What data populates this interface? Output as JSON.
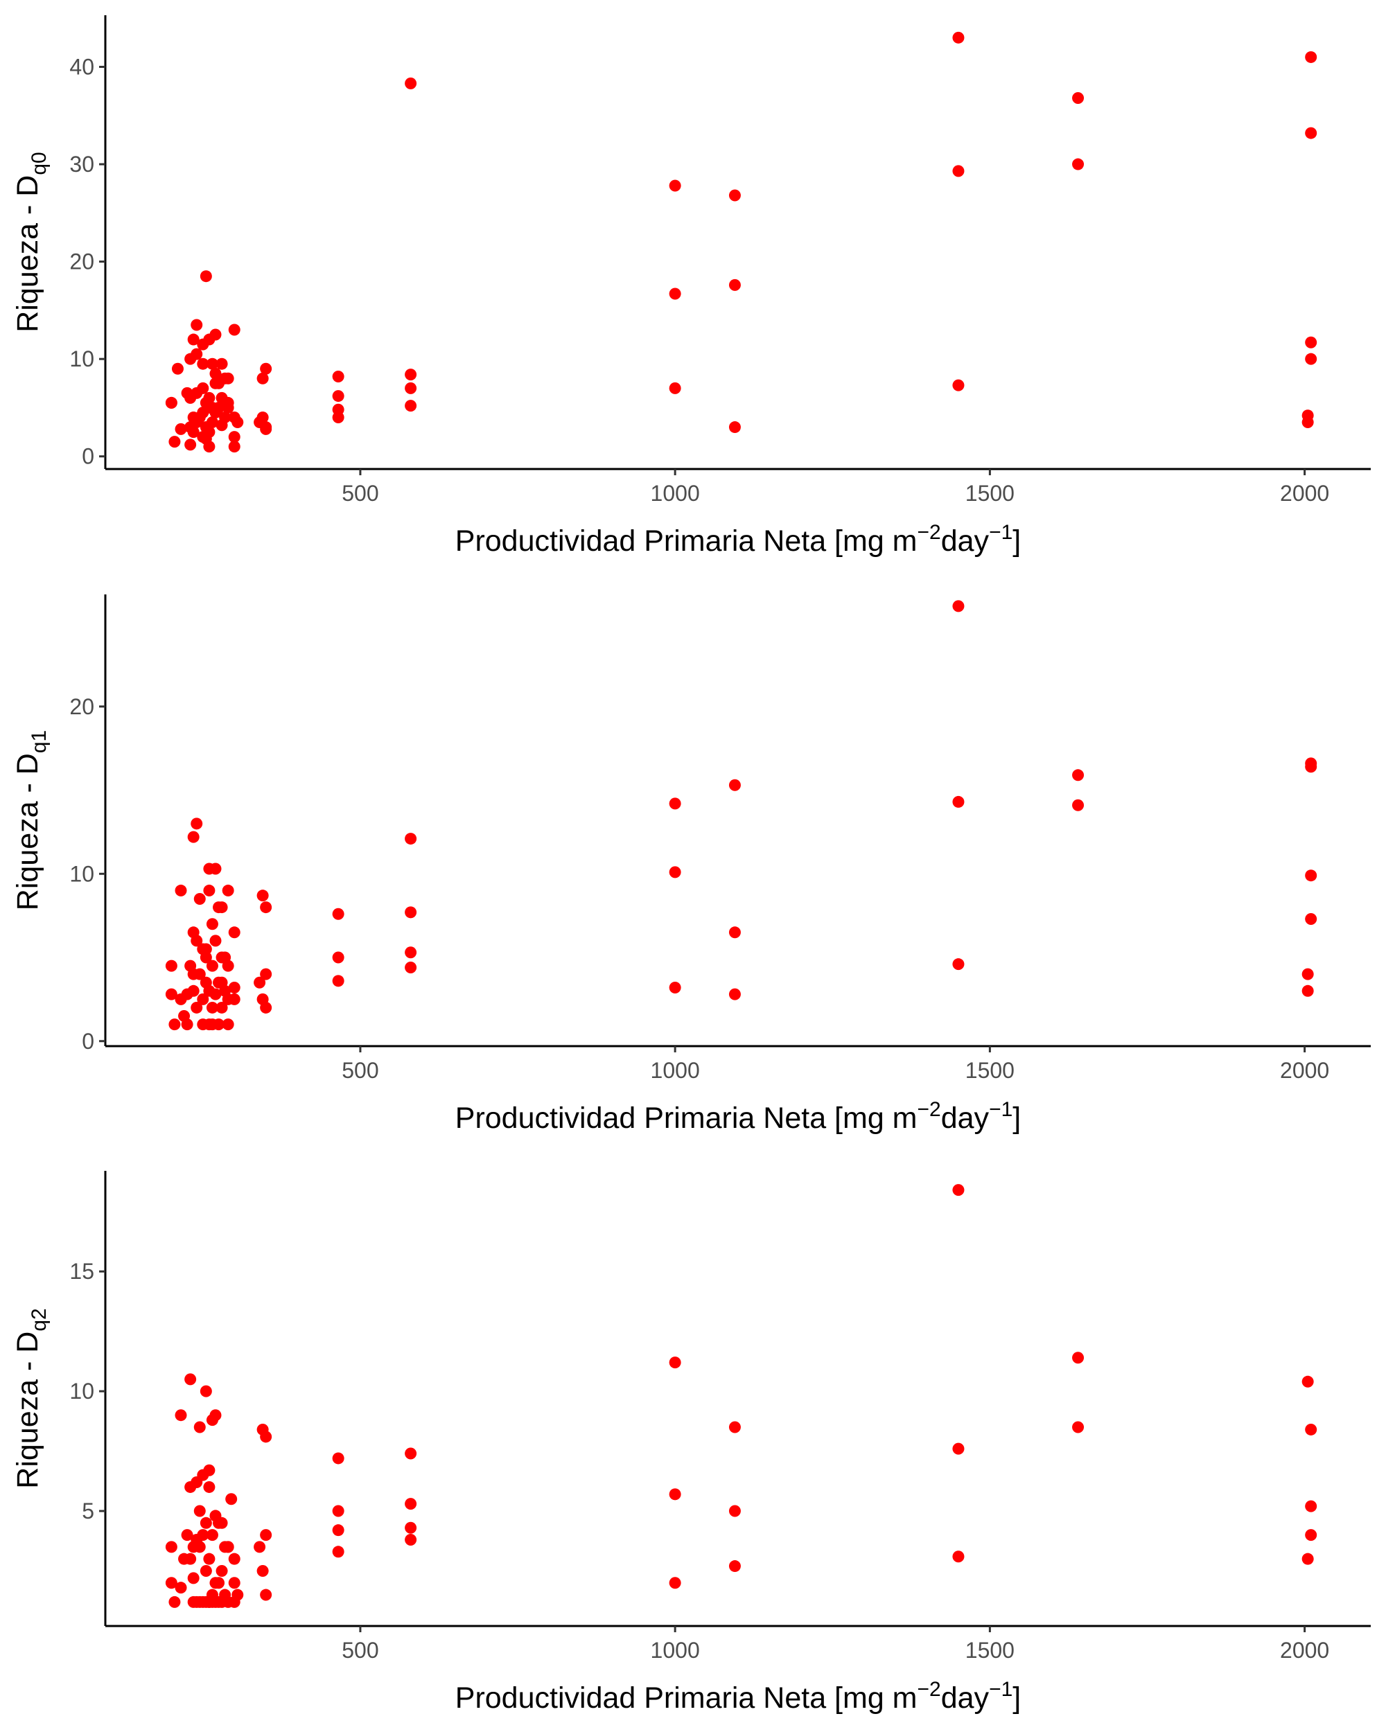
{
  "chart_data": [
    {
      "type": "scatter",
      "xlabel": "Productividad Primaria Neta [mg m",
      "xlabel_sup1": "−2",
      "xlabel_mid": "day",
      "xlabel_sup2": "−1",
      "xlabel_end": "]",
      "ylabel_main": "Riqueza - D",
      "ylabel_sub": "q0",
      "xlim": [
        95,
        2105
      ],
      "ylim": [
        -1.3,
        45.3
      ],
      "xticks": [
        500,
        1000,
        1500,
        2000
      ],
      "yticks": [
        0,
        10,
        20,
        30,
        40
      ],
      "grid": false,
      "point_color": "#ff0000",
      "series": [
        {
          "x": [
            200,
            205,
            215,
            230,
            230,
            235,
            240,
            245,
            250,
            255,
            260,
            265,
            270,
            275,
            280,
            285,
            290,
            300,
            305,
            230,
            240,
            250,
            255,
            260,
            265,
            270,
            280,
            285,
            290,
            300,
            200,
            210,
            225,
            240,
            250,
            260,
            270,
            280,
            300,
            235,
            250,
            265,
            275,
            290,
            240,
            255,
            270,
            250,
            260,
            300,
            235,
            260,
            230,
            255,
            340,
            345,
            350,
            345,
            350,
            350,
            465,
            465,
            465,
            465,
            580,
            580,
            580,
            580,
            1000,
            1000,
            1000,
            1095,
            1095,
            1095,
            1450,
            1450,
            1450,
            1640,
            1640,
            2005,
            2005,
            2010,
            2010,
            2010,
            2010
          ],
          "y": [
            5.5,
            1.5,
            2.8,
            3.0,
            1.2,
            2.5,
            3.5,
            4.0,
            4.5,
            3.0,
            5.0,
            3.5,
            4.5,
            5.0,
            3.2,
            4.0,
            5.5,
            4.0,
            3.5,
            6.0,
            6.5,
            7.0,
            5.5,
            6.0,
            5.0,
            7.5,
            6.0,
            8.0,
            5.0,
            2.0,
            5.5,
            9.0,
            6.5,
            10.5,
            9.5,
            12.0,
            8.5,
            9.5,
            13.0,
            12.0,
            11.5,
            9.5,
            7.5,
            8.0,
            13.5,
            18.5,
            12.5,
            2.0,
            1.0,
            1.0,
            4.0,
            2.5,
            10.0,
            1.8,
            3.5,
            4.0,
            3.0,
            8.0,
            9.0,
            2.8,
            4.0,
            4.8,
            6.2,
            8.2,
            5.2,
            7.0,
            8.4,
            38.3,
            7.0,
            16.7,
            27.8,
            3.0,
            17.6,
            26.8,
            7.3,
            29.3,
            43.0,
            30.0,
            36.8,
            3.5,
            4.2,
            10.0,
            11.7,
            33.2,
            41.0
          ]
        }
      ]
    },
    {
      "type": "scatter",
      "xlabel": "Productividad Primaria Neta [mg m",
      "xlabel_sup1": "−2",
      "xlabel_mid": "day",
      "xlabel_sup2": "−1",
      "xlabel_end": "]",
      "ylabel_main": "Riqueza - D",
      "ylabel_sub": "q1",
      "xlim": [
        95,
        2105
      ],
      "ylim": [
        -0.3,
        26.7
      ],
      "xticks": [
        500,
        1000,
        1500,
        2000
      ],
      "yticks": [
        0,
        10,
        20
      ],
      "grid": false,
      "point_color": "#ff0000",
      "series": [
        {
          "x": [
            200,
            200,
            205,
            215,
            225,
            235,
            240,
            250,
            255,
            260,
            265,
            270,
            275,
            280,
            285,
            290,
            300,
            230,
            245,
            255,
            265,
            280,
            290,
            300,
            220,
            240,
            255,
            270,
            285,
            235,
            250,
            265,
            280,
            300,
            245,
            260,
            270,
            275,
            290,
            235,
            260,
            240,
            215,
            250,
            265,
            260,
            275,
            290,
            225,
            235,
            280,
            340,
            345,
            350,
            350,
            345,
            350,
            465,
            465,
            465,
            580,
            580,
            580,
            580,
            1000,
            1000,
            1000,
            1095,
            1095,
            1095,
            1450,
            1450,
            1450,
            1640,
            1640,
            2005,
            2005,
            2010,
            2010,
            2010,
            2010
          ],
          "y": [
            4.5,
            2.8,
            1.0,
            2.5,
            2.8,
            3.0,
            2.0,
            2.5,
            3.5,
            3.0,
            2.0,
            2.8,
            3.5,
            2.0,
            3.0,
            2.5,
            3.2,
            4.5,
            4.0,
            5.0,
            4.5,
            3.5,
            4.5,
            2.5,
            1.5,
            6.0,
            5.5,
            6.0,
            5.0,
            6.5,
            5.5,
            7.0,
            8.0,
            6.5,
            8.5,
            9.0,
            10.3,
            8.0,
            9.0,
            12.2,
            10.3,
            13.0,
            9.0,
            1.0,
            1.0,
            1.0,
            1.0,
            1.0,
            1.0,
            4.0,
            5.0,
            3.5,
            2.5,
            2.0,
            4.0,
            8.7,
            8.0,
            3.6,
            5.0,
            7.6,
            4.4,
            5.3,
            7.7,
            12.1,
            3.2,
            10.1,
            14.2,
            2.8,
            6.5,
            15.3,
            4.6,
            14.3,
            26.0,
            14.1,
            15.9,
            3.0,
            4.0,
            7.3,
            9.9,
            16.4,
            16.6
          ]
        }
      ]
    },
    {
      "type": "scatter",
      "xlabel": "Productividad Primaria Neta [mg m",
      "xlabel_sup1": "−2",
      "xlabel_mid": "day",
      "xlabel_sup2": "−1",
      "xlabel_end": "]",
      "ylabel_main": "Riqueza - D",
      "ylabel_sub": "q2",
      "xlim": [
        95,
        2105
      ],
      "ylim": [
        0.2,
        19.2
      ],
      "xticks": [
        500,
        1000,
        1500,
        2000
      ],
      "yticks": [
        5,
        10,
        15
      ],
      "grid": false,
      "point_color": "#ff0000",
      "series": [
        {
          "x": [
            200,
            200,
            205,
            215,
            220,
            230,
            235,
            240,
            245,
            250,
            255,
            260,
            265,
            270,
            275,
            280,
            285,
            290,
            300,
            305,
            225,
            235,
            245,
            255,
            265,
            275,
            285,
            295,
            230,
            240,
            250,
            260,
            270,
            280,
            290,
            300,
            230,
            245,
            255,
            260,
            265,
            270,
            245,
            260,
            275,
            215,
            235,
            255,
            270,
            240,
            250,
            260,
            265,
            280,
            290,
            300,
            340,
            345,
            350,
            350,
            345,
            350,
            465,
            465,
            465,
            465,
            580,
            580,
            580,
            580,
            1000,
            1000,
            1000,
            1095,
            1095,
            1095,
            1450,
            1450,
            1450,
            1640,
            1640,
            2005,
            2005,
            2010,
            2010,
            2010
          ],
          "y": [
            3.5,
            2.0,
            1.2,
            1.8,
            3.0,
            3.0,
            2.2,
            3.8,
            3.5,
            4.0,
            2.5,
            3.0,
            1.5,
            2.0,
            2.0,
            2.5,
            1.5,
            3.5,
            2.0,
            1.5,
            4.0,
            3.5,
            5.0,
            4.5,
            4.0,
            4.5,
            3.5,
            5.5,
            6.0,
            6.2,
            6.5,
            6.7,
            4.8,
            4.5,
            3.5,
            3.0,
            10.5,
            8.5,
            10.0,
            6.0,
            8.8,
            9.0,
            1.2,
            1.2,
            1.2,
            9.0,
            1.2,
            1.2,
            1.2,
            1.2,
            1.2,
            1.2,
            1.2,
            1.2,
            1.2,
            1.2,
            3.5,
            2.5,
            1.5,
            4.0,
            8.4,
            8.1,
            3.3,
            4.2,
            5.0,
            7.2,
            3.8,
            4.3,
            5.3,
            7.4,
            2.0,
            5.7,
            11.2,
            2.7,
            5.0,
            8.5,
            3.1,
            7.6,
            18.4,
            8.5,
            11.4,
            3.0,
            10.4,
            4.0,
            5.2,
            8.4
          ]
        }
      ]
    }
  ]
}
